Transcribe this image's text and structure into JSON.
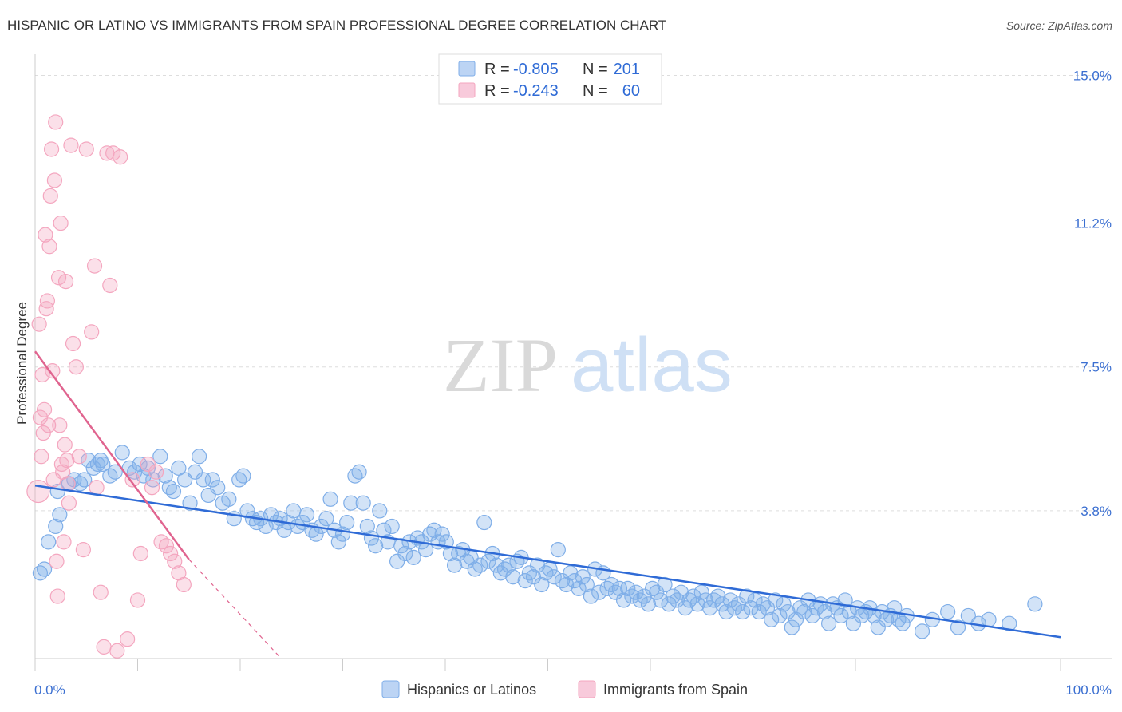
{
  "title": "HISPANIC OR LATINO VS IMMIGRANTS FROM SPAIN PROFESSIONAL DEGREE CORRELATION CHART",
  "source": "Source: ZipAtlas.com",
  "watermark": {
    "zip": "ZIP",
    "atlas": "atlas"
  },
  "colors": {
    "blue": "#7faee8",
    "blue_line": "#2f6bd6",
    "pink": "#f4a6bf",
    "pink_line": "#e0648f",
    "grid": "#dddddd",
    "axis_text": "#3b6fd1"
  },
  "legend_box": {
    "rows": [
      {
        "r_label": "R =",
        "r_value": "-0.805",
        "n_label": "N =",
        "n_value": "201"
      },
      {
        "r_label": "R =",
        "r_value": "-0.243",
        "n_label": "N =",
        "n_value": "60"
      }
    ]
  },
  "chart_data": {
    "type": "scatter",
    "title": "HISPANIC OR LATINO VS IMMIGRANTS FROM SPAIN PROFESSIONAL DEGREE CORRELATION CHART",
    "xlabel": "",
    "ylabel": "Professional Degree",
    "x_tick_labels": [
      "0.0%",
      "100.0%"
    ],
    "y_tick_labels": [
      "15.0%",
      "11.2%",
      "7.5%",
      "3.8%"
    ],
    "y_ticks": [
      15.0,
      11.2,
      7.5,
      3.8
    ],
    "xlim": [
      0,
      100
    ],
    "ylim": [
      0,
      15.4
    ],
    "grid": true,
    "legend_position": "bottom-center",
    "series": [
      {
        "name": "Hispanics or Latinos",
        "color": "#7faee8",
        "trend": {
          "x": [
            0,
            100
          ],
          "y": [
            4.45,
            0.55
          ]
        },
        "points": [
          [
            0.5,
            2.2
          ],
          [
            0.9,
            2.3
          ],
          [
            1.3,
            3.0
          ],
          [
            2.0,
            3.4
          ],
          [
            2.4,
            3.7
          ],
          [
            2.2,
            4.3
          ],
          [
            3.3,
            4.5
          ],
          [
            3.8,
            4.6
          ],
          [
            4.4,
            4.5
          ],
          [
            4.8,
            4.6
          ],
          [
            5.2,
            5.1
          ],
          [
            5.7,
            4.9
          ],
          [
            6.1,
            5.0
          ],
          [
            6.4,
            5.1
          ],
          [
            6.6,
            5.0
          ],
          [
            7.3,
            4.7
          ],
          [
            7.8,
            4.8
          ],
          [
            8.5,
            5.3
          ],
          [
            9.2,
            4.9
          ],
          [
            9.7,
            4.8
          ],
          [
            10.2,
            5.0
          ],
          [
            10.6,
            4.7
          ],
          [
            11.0,
            4.9
          ],
          [
            11.5,
            4.6
          ],
          [
            12.2,
            5.2
          ],
          [
            12.7,
            4.7
          ],
          [
            13.1,
            4.4
          ],
          [
            13.5,
            4.3
          ],
          [
            14.0,
            4.9
          ],
          [
            14.6,
            4.6
          ],
          [
            15.1,
            4.0
          ],
          [
            15.6,
            4.8
          ],
          [
            16.0,
            5.2
          ],
          [
            16.4,
            4.6
          ],
          [
            16.9,
            4.2
          ],
          [
            17.3,
            4.6
          ],
          [
            17.8,
            4.4
          ],
          [
            18.3,
            4.0
          ],
          [
            18.9,
            4.1
          ],
          [
            19.4,
            3.6
          ],
          [
            19.9,
            4.6
          ],
          [
            20.3,
            4.7
          ],
          [
            20.7,
            3.8
          ],
          [
            21.2,
            3.6
          ],
          [
            21.6,
            3.5
          ],
          [
            22.0,
            3.6
          ],
          [
            22.5,
            3.4
          ],
          [
            23.0,
            3.7
          ],
          [
            23.5,
            3.5
          ],
          [
            23.9,
            3.6
          ],
          [
            24.3,
            3.3
          ],
          [
            24.7,
            3.5
          ],
          [
            25.2,
            3.8
          ],
          [
            25.6,
            3.4
          ],
          [
            26.1,
            3.5
          ],
          [
            26.5,
            3.7
          ],
          [
            27.0,
            3.3
          ],
          [
            27.4,
            3.2
          ],
          [
            27.9,
            3.4
          ],
          [
            28.4,
            3.6
          ],
          [
            28.8,
            4.1
          ],
          [
            29.2,
            3.3
          ],
          [
            29.6,
            3.0
          ],
          [
            30.0,
            3.2
          ],
          [
            30.4,
            3.5
          ],
          [
            30.8,
            4.0
          ],
          [
            31.2,
            4.7
          ],
          [
            31.6,
            4.8
          ],
          [
            32.0,
            4.0
          ],
          [
            32.4,
            3.4
          ],
          [
            32.8,
            3.1
          ],
          [
            33.2,
            2.9
          ],
          [
            33.6,
            3.8
          ],
          [
            34.0,
            3.3
          ],
          [
            34.4,
            3.0
          ],
          [
            34.8,
            3.4
          ],
          [
            35.3,
            2.5
          ],
          [
            35.7,
            2.9
          ],
          [
            36.1,
            2.7
          ],
          [
            36.5,
            3.0
          ],
          [
            36.9,
            2.6
          ],
          [
            37.3,
            3.1
          ],
          [
            37.7,
            3.0
          ],
          [
            38.1,
            2.8
          ],
          [
            38.5,
            3.2
          ],
          [
            38.9,
            3.3
          ],
          [
            39.3,
            3.0
          ],
          [
            39.7,
            3.2
          ],
          [
            40.1,
            3.0
          ],
          [
            40.5,
            2.7
          ],
          [
            40.9,
            2.4
          ],
          [
            41.3,
            2.7
          ],
          [
            41.7,
            2.8
          ],
          [
            42.1,
            2.5
          ],
          [
            42.5,
            2.6
          ],
          [
            42.9,
            2.3
          ],
          [
            43.4,
            2.4
          ],
          [
            43.8,
            3.5
          ],
          [
            44.2,
            2.5
          ],
          [
            44.6,
            2.7
          ],
          [
            45.0,
            2.4
          ],
          [
            45.4,
            2.2
          ],
          [
            45.8,
            2.3
          ],
          [
            46.2,
            2.4
          ],
          [
            46.6,
            2.1
          ],
          [
            47.0,
            2.5
          ],
          [
            47.4,
            2.6
          ],
          [
            47.8,
            2.0
          ],
          [
            48.2,
            2.2
          ],
          [
            48.6,
            2.1
          ],
          [
            49.0,
            2.4
          ],
          [
            49.4,
            1.9
          ],
          [
            49.8,
            2.2
          ],
          [
            50.2,
            2.3
          ],
          [
            50.6,
            2.1
          ],
          [
            51.0,
            2.8
          ],
          [
            51.4,
            2.0
          ],
          [
            51.8,
            1.9
          ],
          [
            52.2,
            2.2
          ],
          [
            52.6,
            2.0
          ],
          [
            53.0,
            1.8
          ],
          [
            53.4,
            2.1
          ],
          [
            53.8,
            1.9
          ],
          [
            54.2,
            1.6
          ],
          [
            54.6,
            2.3
          ],
          [
            55.0,
            1.7
          ],
          [
            55.4,
            2.2
          ],
          [
            55.8,
            1.8
          ],
          [
            56.2,
            1.9
          ],
          [
            56.6,
            1.7
          ],
          [
            57.0,
            1.8
          ],
          [
            57.4,
            1.5
          ],
          [
            57.8,
            1.8
          ],
          [
            58.2,
            1.6
          ],
          [
            58.6,
            1.7
          ],
          [
            59.0,
            1.5
          ],
          [
            59.4,
            1.6
          ],
          [
            59.8,
            1.4
          ],
          [
            60.2,
            1.8
          ],
          [
            60.6,
            1.7
          ],
          [
            61.0,
            1.5
          ],
          [
            61.4,
            1.9
          ],
          [
            61.8,
            1.4
          ],
          [
            62.2,
            1.6
          ],
          [
            62.6,
            1.5
          ],
          [
            63.0,
            1.7
          ],
          [
            63.4,
            1.3
          ],
          [
            63.8,
            1.5
          ],
          [
            64.2,
            1.6
          ],
          [
            64.6,
            1.4
          ],
          [
            65.0,
            1.7
          ],
          [
            65.4,
            1.5
          ],
          [
            65.8,
            1.3
          ],
          [
            66.2,
            1.5
          ],
          [
            66.6,
            1.6
          ],
          [
            67.0,
            1.4
          ],
          [
            67.4,
            1.2
          ],
          [
            67.8,
            1.5
          ],
          [
            68.2,
            1.3
          ],
          [
            68.6,
            1.4
          ],
          [
            69.0,
            1.2
          ],
          [
            69.4,
            1.6
          ],
          [
            69.8,
            1.3
          ],
          [
            70.2,
            1.5
          ],
          [
            70.6,
            1.2
          ],
          [
            71.0,
            1.4
          ],
          [
            71.4,
            1.3
          ],
          [
            71.8,
            1.0
          ],
          [
            72.2,
            1.5
          ],
          [
            72.6,
            1.1
          ],
          [
            73.0,
            1.4
          ],
          [
            73.4,
            1.2
          ],
          [
            73.8,
            0.8
          ],
          [
            74.2,
            1.0
          ],
          [
            74.6,
            1.3
          ],
          [
            75.0,
            1.2
          ],
          [
            75.4,
            1.5
          ],
          [
            75.8,
            1.1
          ],
          [
            76.2,
            1.3
          ],
          [
            76.6,
            1.4
          ],
          [
            77.0,
            1.2
          ],
          [
            77.4,
            0.9
          ],
          [
            77.8,
            1.4
          ],
          [
            78.2,
            1.3
          ],
          [
            78.6,
            1.1
          ],
          [
            79.0,
            1.5
          ],
          [
            79.4,
            1.2
          ],
          [
            79.8,
            0.9
          ],
          [
            80.2,
            1.3
          ],
          [
            80.6,
            1.1
          ],
          [
            81.0,
            1.2
          ],
          [
            81.4,
            1.3
          ],
          [
            81.8,
            1.1
          ],
          [
            82.2,
            0.8
          ],
          [
            82.6,
            1.2
          ],
          [
            83.0,
            1.0
          ],
          [
            83.4,
            1.1
          ],
          [
            83.8,
            1.3
          ],
          [
            84.2,
            1.0
          ],
          [
            84.6,
            0.9
          ],
          [
            85.0,
            1.1
          ],
          [
            86.5,
            0.7
          ],
          [
            87.5,
            1.0
          ],
          [
            89.0,
            1.2
          ],
          [
            90.0,
            0.8
          ],
          [
            91.0,
            1.1
          ],
          [
            92.0,
            0.9
          ],
          [
            93.0,
            1.0
          ],
          [
            95.0,
            0.9
          ],
          [
            97.5,
            1.4
          ]
        ]
      },
      {
        "name": "Immigrants from Spain",
        "color": "#f4a6bf",
        "trend": {
          "x": [
            0,
            15
          ],
          "y": [
            7.9,
            2.55
          ]
        },
        "trend_dashed": {
          "x": [
            15,
            24
          ],
          "y": [
            2.55,
            0
          ]
        },
        "points": [
          [
            0.3,
            4.3
          ],
          [
            0.4,
            8.6
          ],
          [
            0.5,
            6.2
          ],
          [
            0.6,
            5.2
          ],
          [
            0.7,
            7.3
          ],
          [
            0.8,
            5.8
          ],
          [
            0.9,
            6.4
          ],
          [
            1.0,
            10.9
          ],
          [
            1.1,
            9.0
          ],
          [
            1.2,
            9.2
          ],
          [
            1.3,
            6.0
          ],
          [
            1.4,
            10.6
          ],
          [
            1.5,
            11.9
          ],
          [
            1.6,
            13.1
          ],
          [
            1.7,
            7.4
          ],
          [
            1.8,
            4.6
          ],
          [
            1.9,
            12.3
          ],
          [
            2.0,
            13.8
          ],
          [
            2.1,
            2.5
          ],
          [
            2.2,
            1.6
          ],
          [
            2.3,
            9.8
          ],
          [
            2.4,
            6.0
          ],
          [
            2.5,
            11.2
          ],
          [
            2.6,
            5.0
          ],
          [
            2.7,
            4.8
          ],
          [
            2.8,
            3.0
          ],
          [
            2.9,
            5.5
          ],
          [
            3.0,
            9.7
          ],
          [
            3.1,
            5.1
          ],
          [
            3.2,
            4.5
          ],
          [
            3.3,
            4.0
          ],
          [
            3.5,
            13.2
          ],
          [
            3.7,
            8.1
          ],
          [
            4.0,
            7.5
          ],
          [
            4.3,
            5.2
          ],
          [
            4.7,
            2.8
          ],
          [
            5.0,
            13.1
          ],
          [
            5.5,
            8.4
          ],
          [
            5.8,
            10.1
          ],
          [
            6.0,
            4.4
          ],
          [
            6.4,
            1.7
          ],
          [
            6.7,
            0.3
          ],
          [
            7.0,
            13.0
          ],
          [
            7.3,
            9.6
          ],
          [
            7.6,
            13.0
          ],
          [
            8.0,
            0.2
          ],
          [
            8.3,
            12.9
          ],
          [
            9.0,
            0.5
          ],
          [
            9.5,
            4.6
          ],
          [
            10.0,
            1.5
          ],
          [
            10.3,
            2.7
          ],
          [
            11.0,
            5.0
          ],
          [
            11.4,
            4.4
          ],
          [
            11.8,
            4.8
          ],
          [
            12.3,
            3.0
          ],
          [
            12.8,
            2.9
          ],
          [
            13.2,
            2.7
          ],
          [
            13.6,
            2.5
          ],
          [
            14.0,
            2.2
          ],
          [
            14.5,
            1.9
          ]
        ]
      }
    ]
  },
  "axis": {
    "x_left": "0.0%",
    "x_right": "100.0%",
    "ylabel": "Professional Degree"
  },
  "bottom_legend": {
    "items": [
      {
        "label": "Hispanics or Latinos"
      },
      {
        "label": "Immigrants from Spain"
      }
    ]
  }
}
